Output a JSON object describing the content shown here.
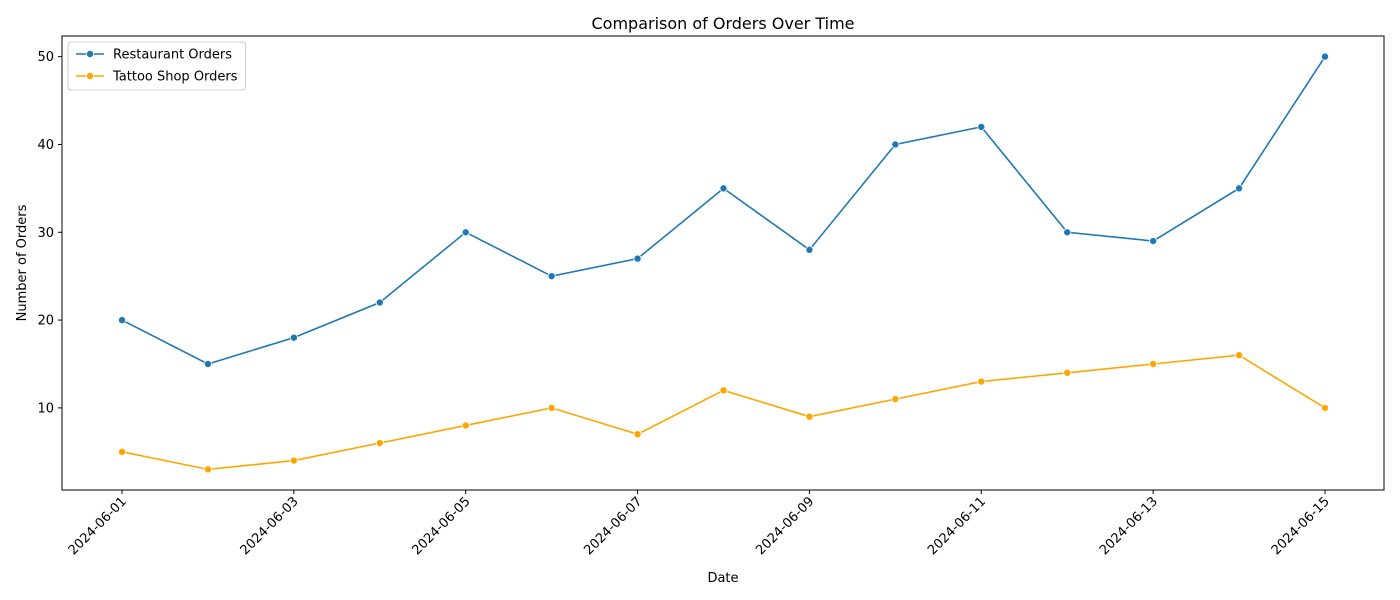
{
  "chart_data": {
    "type": "line",
    "title": "Comparison of Orders Over Time",
    "xlabel": "Date",
    "ylabel": "Number of Orders",
    "x": [
      "2024-06-01",
      "2024-06-02",
      "2024-06-03",
      "2024-06-04",
      "2024-06-05",
      "2024-06-06",
      "2024-06-07",
      "2024-06-08",
      "2024-06-09",
      "2024-06-10",
      "2024-06-11",
      "2024-06-12",
      "2024-06-13",
      "2024-06-14",
      "2024-06-15"
    ],
    "x_ticks": [
      "2024-06-01",
      "2024-06-03",
      "2024-06-05",
      "2024-06-07",
      "2024-06-09",
      "2024-06-11",
      "2024-06-13",
      "2024-06-15"
    ],
    "y_ticks": [
      10,
      20,
      30,
      40,
      50
    ],
    "ylim": [
      0.65,
      52.35
    ],
    "grid": false,
    "legend_position": "upper left",
    "series": [
      {
        "name": "Restaurant Orders",
        "color": "#1f77b4",
        "marker": "circle",
        "values": [
          20,
          15,
          18,
          22,
          30,
          25,
          27,
          35,
          28,
          40,
          42,
          30,
          29,
          35,
          50
        ]
      },
      {
        "name": "Tattoo Shop Orders",
        "color": "#ffa500",
        "marker": "circle",
        "values": [
          5,
          3,
          4,
          6,
          8,
          10,
          7,
          12,
          9,
          11,
          13,
          14,
          15,
          16,
          10
        ]
      }
    ]
  }
}
